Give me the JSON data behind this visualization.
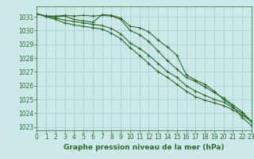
{
  "xlabel": "Graphe pression niveau de la mer (hPa)",
  "x": [
    0,
    1,
    2,
    3,
    4,
    5,
    6,
    7,
    8,
    9,
    10,
    11,
    12,
    13,
    14,
    15,
    16,
    17,
    18,
    19,
    20,
    21,
    22,
    23
  ],
  "line1": [
    1031.2,
    1031.05,
    1031.05,
    1031.1,
    1031.05,
    1031.1,
    1031.05,
    1031.1,
    1031.05,
    1030.8,
    1030.0,
    1029.7,
    1029.2,
    1028.5,
    1027.8,
    1027.2,
    1026.6,
    1026.3,
    1025.9,
    1025.5,
    1025.1,
    1024.6,
    1024.1,
    1023.4
  ],
  "line2": [
    1031.2,
    1031.05,
    1031.0,
    1031.05,
    1030.8,
    1030.7,
    1030.6,
    1031.15,
    1031.1,
    1030.9,
    1030.3,
    1030.2,
    1029.9,
    1029.3,
    1028.8,
    1028.2,
    1026.8,
    1026.4,
    1026.1,
    1025.6,
    1025.0,
    1024.5,
    1023.7,
    1023.1
  ],
  "line3": [
    1031.2,
    1031.05,
    1030.9,
    1030.75,
    1030.65,
    1030.55,
    1030.45,
    1030.35,
    1030.15,
    1029.75,
    1029.1,
    1028.7,
    1028.2,
    1027.6,
    1027.0,
    1026.6,
    1026.0,
    1025.6,
    1025.3,
    1025.0,
    1024.8,
    1024.4,
    1024.0,
    1023.4
  ],
  "line4": [
    1031.2,
    1031.0,
    1030.8,
    1030.55,
    1030.4,
    1030.3,
    1030.2,
    1030.1,
    1029.8,
    1029.4,
    1028.75,
    1028.2,
    1027.6,
    1027.0,
    1026.6,
    1026.1,
    1025.6,
    1025.2,
    1024.95,
    1024.75,
    1024.55,
    1024.25,
    1023.85,
    1023.4
  ],
  "ylim": [
    1022.75,
    1031.75
  ],
  "xlim": [
    0,
    23
  ],
  "yticks": [
    1023,
    1024,
    1025,
    1026,
    1027,
    1028,
    1029,
    1030,
    1031
  ],
  "xticks": [
    0,
    1,
    2,
    3,
    4,
    5,
    6,
    7,
    8,
    9,
    10,
    11,
    12,
    13,
    14,
    15,
    16,
    17,
    18,
    19,
    20,
    21,
    22,
    23
  ],
  "bg_color": "#cce8e8",
  "grid_color": "#aacccc",
  "line_color": "#2d6b2d",
  "marker": "+",
  "markersize": 3,
  "linewidth": 0.8,
  "xlabel_fontsize": 6.5,
  "tick_fontsize": 5.5,
  "tick_color": "#2d6b2d",
  "axis_color": "#2d6b2d"
}
